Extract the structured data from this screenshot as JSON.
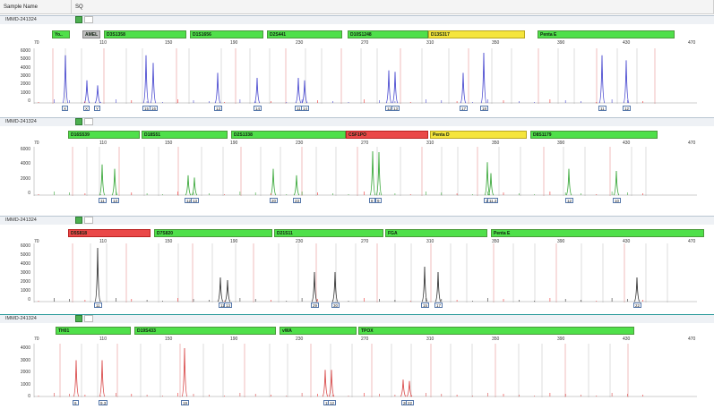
{
  "header": {
    "col1": "Sample Name",
    "col2": "SQ"
  },
  "panels": [
    {
      "sample": "IMMD-241324",
      "color": "#4a4ad0",
      "markers": [
        {
          "label": "Yo..",
          "type": "green"
        },
        {
          "label": "AMEL",
          "type": "gray"
        },
        {
          "label": "D3S1358",
          "type": "green"
        },
        {
          "label": "D1S1656",
          "type": "green"
        },
        {
          "label": "D2S441",
          "type": "green"
        },
        {
          "label": "D10S1248",
          "type": "green"
        },
        {
          "label": "D13S317",
          "type": "yellow"
        },
        {
          "label": "Penta E",
          "type": "green"
        }
      ],
      "scale": [
        "70",
        "110",
        "150",
        "190",
        "230",
        "270",
        "310",
        "350",
        "390",
        "430",
        "470"
      ],
      "yticks": [
        "6000",
        "5000",
        "4000",
        "3000",
        "2000",
        "1000",
        "0"
      ],
      "alleles": [
        "X",
        "X",
        "Y",
        "15",
        "16",
        "13",
        "14",
        "11",
        "14",
        "12",
        "13",
        "17",
        "18",
        "11",
        "12"
      ]
    },
    {
      "sample": "IMMD-241324",
      "color": "#3aa83a",
      "markers": [
        {
          "label": "D16S539",
          "type": "green"
        },
        {
          "label": "D18S51",
          "type": "green"
        },
        {
          "label": "D2S1338",
          "type": "green"
        },
        {
          "label": "CSF1PO",
          "type": "red"
        },
        {
          "label": "Penta D",
          "type": "yellow"
        },
        {
          "label": "D8S1179",
          "type": "green"
        }
      ],
      "scale": [
        "70",
        "110",
        "150",
        "190",
        "230",
        "270",
        "310",
        "350",
        "390",
        "430",
        "470"
      ],
      "yticks": [
        "6000",
        "4000",
        "2000",
        "0"
      ],
      "alleles": [
        "11",
        "13",
        "12",
        "13",
        "20",
        "23",
        "8",
        "9",
        "15",
        "11.3",
        "12",
        "10"
      ]
    },
    {
      "sample": "IMMD-241324",
      "color": "#333333",
      "markers": [
        {
          "label": "D5S818",
          "type": "red"
        },
        {
          "label": "D7S820",
          "type": "green"
        },
        {
          "label": "D21S11",
          "type": "green"
        },
        {
          "label": "FGA",
          "type": "green"
        },
        {
          "label": "Penta E",
          "type": "green"
        }
      ],
      "scale": [
        "70",
        "110",
        "150",
        "190",
        "230",
        "270",
        "310",
        "350",
        "390",
        "430",
        "470"
      ],
      "yticks": [
        "6000",
        "5000",
        "4000",
        "3000",
        "2000",
        "1000",
        "0"
      ],
      "alleles": [
        "11",
        "11",
        "13",
        "29",
        "30",
        "15",
        "17",
        "22"
      ]
    },
    {
      "sample": "IMMD-241324",
      "color": "#d94a4a",
      "markers": [
        {
          "label": "TH01",
          "type": "green"
        },
        {
          "label": "D19S433",
          "type": "green"
        },
        {
          "label": "vWA",
          "type": "green"
        },
        {
          "label": "TPOX",
          "type": "green"
        }
      ],
      "scale": [
        "70",
        "110",
        "150",
        "190",
        "230",
        "270",
        "310",
        "350",
        "390",
        "430",
        "470"
      ],
      "yticks": [
        "4000",
        "3000",
        "2000",
        "1000",
        "0"
      ],
      "alleles": [
        "6",
        "9.3",
        "19",
        "11",
        "12",
        "20",
        "22"
      ]
    }
  ]
}
